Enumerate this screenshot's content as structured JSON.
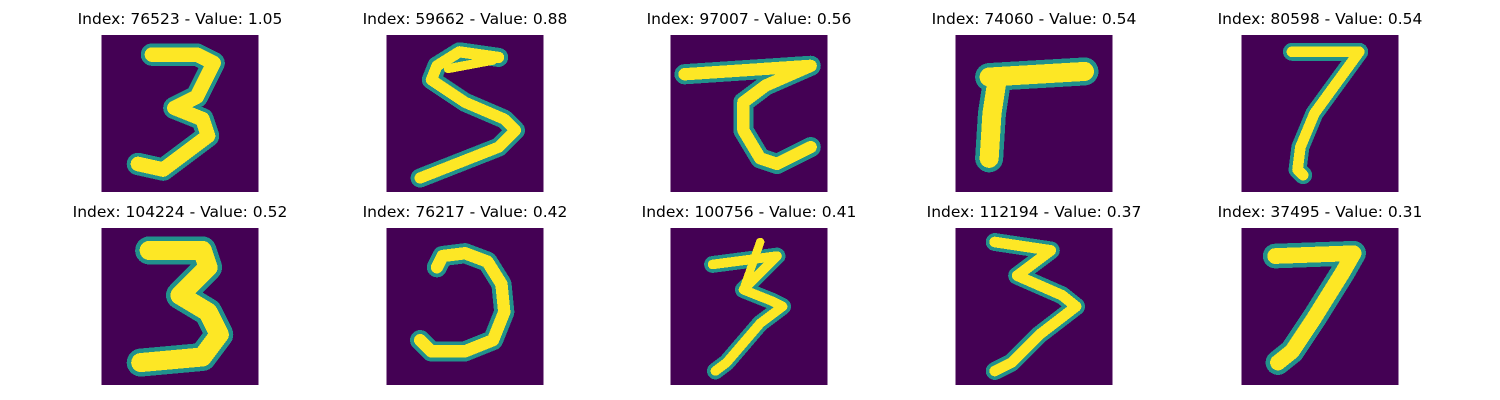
{
  "panels": [
    {
      "title": "Index: 76523 - Value: 1.05",
      "digit": "3"
    },
    {
      "title": "Index: 59662 - Value: 0.88",
      "digit": "5"
    },
    {
      "title": "Index: 97007 - Value: 0.56",
      "digit": "7 (crossed)"
    },
    {
      "title": "Index: 74060 - Value: 0.54",
      "digit": "7 (flat)"
    },
    {
      "title": "Index: 80598 - Value: 0.54",
      "digit": "7"
    },
    {
      "title": "Index: 104224 - Value: 0.52",
      "digit": "3"
    },
    {
      "title": "Index: 76217 - Value: 0.42",
      "digit": "3 (open)"
    },
    {
      "title": "Index: 100756 - Value: 0.41",
      "digit": "3 (thin)"
    },
    {
      "title": "Index: 112194 - Value: 0.37",
      "digit": "3 (thin)"
    },
    {
      "title": "Index: 37495 - Value: 0.31",
      "digit": "7"
    }
  ],
  "colors": {
    "background": "#440154",
    "stroke": "#fde725",
    "edge": "#21918c"
  }
}
